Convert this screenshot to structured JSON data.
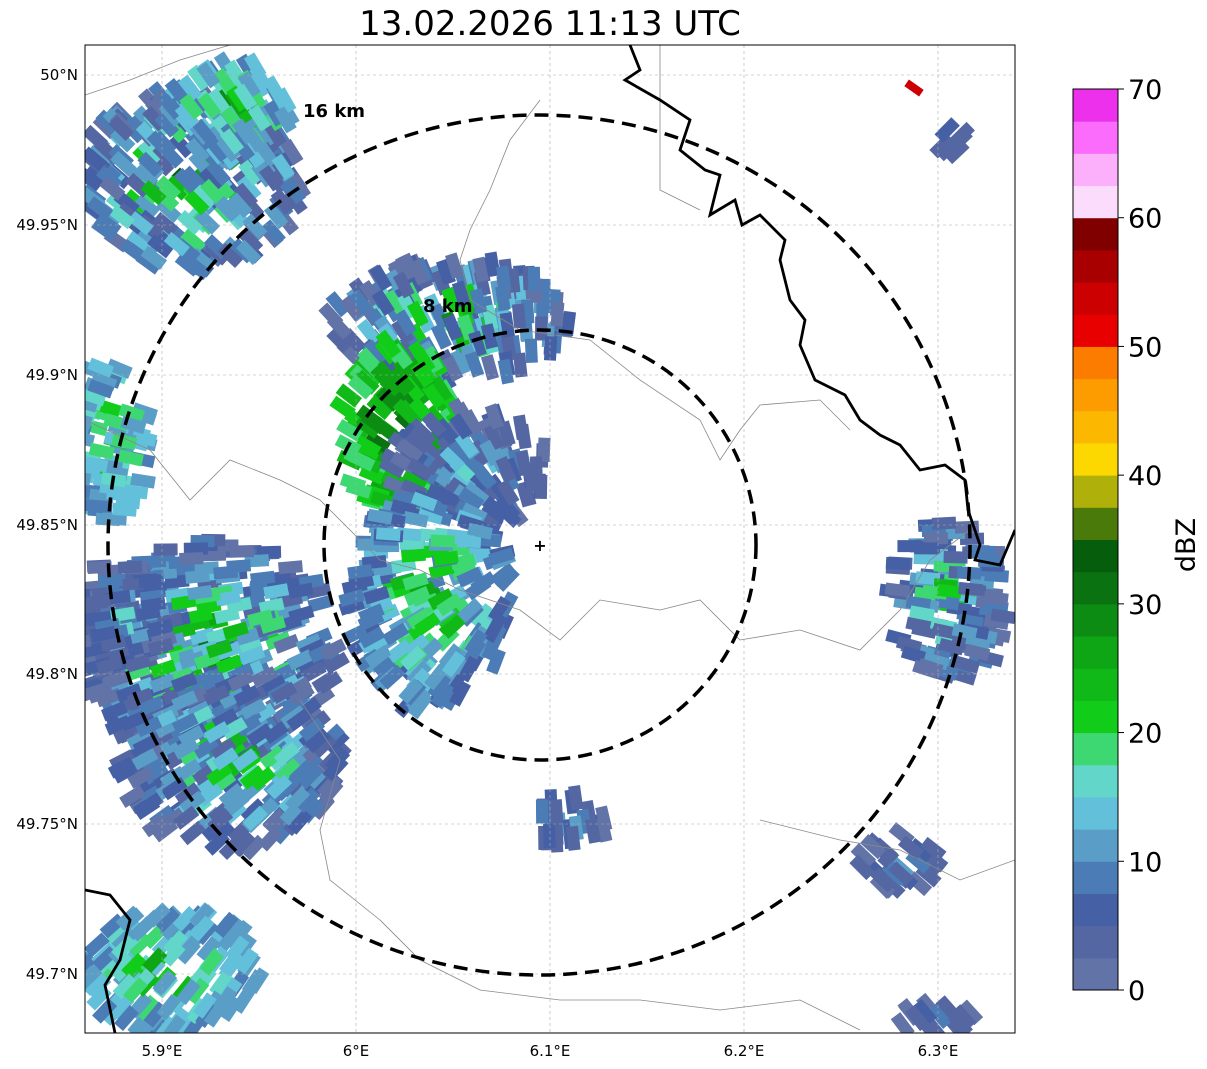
{
  "title": "13.02.2026 11:13 UTC",
  "map": {
    "lon_ticks": [
      "5.9°E",
      "6°E",
      "6.1°E",
      "6.2°E",
      "6.3°E"
    ],
    "lat_ticks": [
      "50°N",
      "49.95°N",
      "49.9°N",
      "49.85°N",
      "49.8°N",
      "49.75°N",
      "49.7°N"
    ],
    "range_rings": [
      {
        "label": "8 km",
        "radius_km": 8
      },
      {
        "label": "16 km",
        "radius_km": 16
      }
    ],
    "radar_site": "radar-center-marker"
  },
  "colorbar": {
    "label": "dBZ",
    "ticks": [
      "0",
      "10",
      "20",
      "30",
      "40",
      "50",
      "60",
      "70"
    ],
    "range": [
      0,
      70
    ],
    "step": 2.5,
    "colors": [
      "#6273a8",
      "#5467a2",
      "#4560a4",
      "#4c7cb5",
      "#5a9ec8",
      "#62c0da",
      "#62d6c8",
      "#3ed872",
      "#12cc1a",
      "#10b818",
      "#0ea614",
      "#0c8c12",
      "#0a7210",
      "#065e0c",
      "#4a7a0a",
      "#b0b00a",
      "#fcd800",
      "#fcb800",
      "#fc9c00",
      "#fc7c00",
      "#e80000",
      "#cc0000",
      "#a80000",
      "#800000",
      "#fcdcfc",
      "#fcb0fc",
      "#fc6cfc",
      "#ec30ec"
    ]
  }
}
